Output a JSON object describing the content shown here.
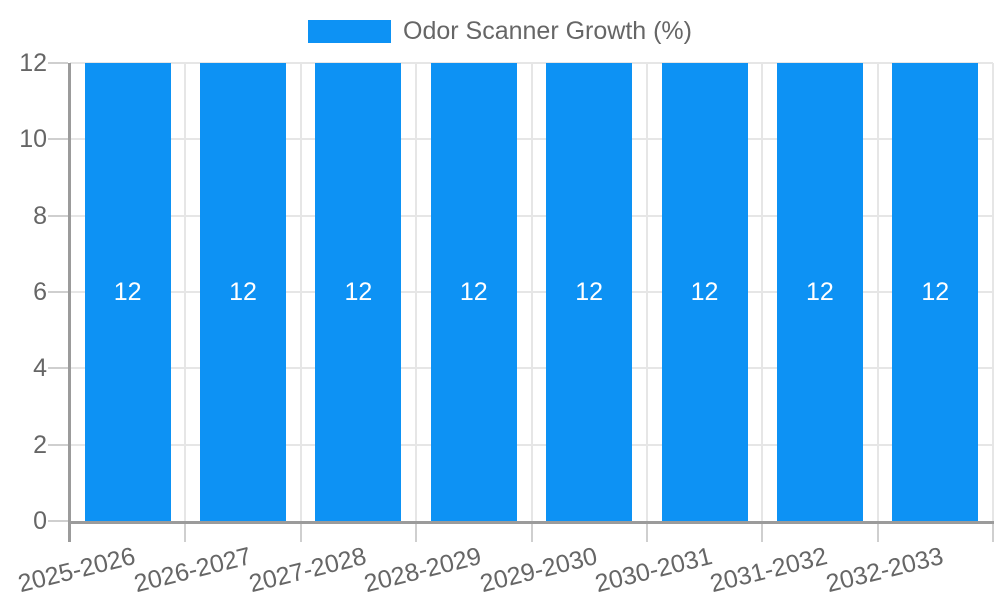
{
  "legend": {
    "position": "top",
    "items": [
      {
        "label": "Odor Scanner Growth (%)",
        "color": "#0d92f4"
      }
    ]
  },
  "chart_data": {
    "type": "bar",
    "title": "Odor Scanner Growth (%)",
    "categories": [
      "2025-2026",
      "2026-2027",
      "2027-2028",
      "2028-2029",
      "2029-2030",
      "2030-2031",
      "2031-2032",
      "2032-2033"
    ],
    "series": [
      {
        "name": "Odor Scanner Growth (%)",
        "color": "#0d92f4",
        "values": [
          12,
          12,
          12,
          12,
          12,
          12,
          12,
          12
        ]
      }
    ],
    "bar_value_labels": [
      "12",
      "12",
      "12",
      "12",
      "12",
      "12",
      "12",
      "12"
    ],
    "xlabel": "",
    "ylabel": "",
    "ylim": [
      0,
      12
    ],
    "yticks": [
      0,
      2,
      4,
      6,
      8,
      10,
      12
    ],
    "x_tick_rotation_deg": -14,
    "grid": true,
    "legend_position": "top",
    "colors": {
      "bar": "#0d92f4",
      "gridline": "#e6e6e6",
      "tick_mark": "#cfcfcf",
      "axis_line": "#9b9b9b",
      "tick_text": "#666666",
      "bar_label_text": "#ffffff",
      "background": "#ffffff"
    }
  }
}
